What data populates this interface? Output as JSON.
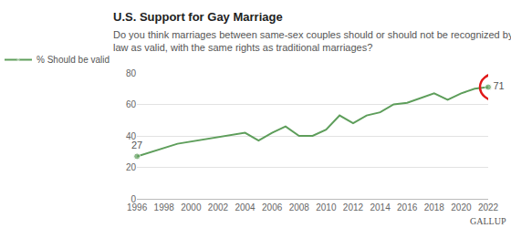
{
  "chart_data": {
    "type": "line",
    "title": "U.S. Support for Gay Marriage",
    "subtitle": "Do you think marriages between same-sex couples should or should not be recognized by the law as valid, with the same rights as traditional marriages?",
    "source": "GALLUP",
    "legend": "top-left",
    "grid": true,
    "data_labels": true,
    "series": [
      {
        "name": "% Should be valid",
        "color": "#5e9e5b",
        "marker": "circle",
        "x": [
          1996,
          1999,
          2004,
          2005,
          2006,
          2007,
          2008,
          2009,
          2010,
          2011,
          2012,
          2013,
          2014,
          2015,
          2016,
          2017,
          2018,
          2019,
          2020,
          2021,
          2022
        ],
        "values": [
          27,
          35,
          42,
          37,
          42,
          46,
          40,
          40,
          44,
          53,
          48,
          53,
          55,
          60,
          61,
          64,
          67,
          63,
          67,
          70,
          71
        ],
        "value_labels": [
          "27",
          null,
          null,
          null,
          null,
          null,
          null,
          null,
          null,
          null,
          null,
          null,
          null,
          null,
          null,
          null,
          null,
          null,
          null,
          null,
          "71"
        ]
      }
    ],
    "xlim": [
      1996,
      2022
    ],
    "xticks": [
      1996,
      1998,
      2000,
      2002,
      2004,
      2006,
      2008,
      2010,
      2012,
      2014,
      2016,
      2018,
      2020,
      2022
    ],
    "ylim": [
      0,
      80
    ],
    "yticks": [
      0,
      20,
      40,
      60,
      80
    ]
  }
}
